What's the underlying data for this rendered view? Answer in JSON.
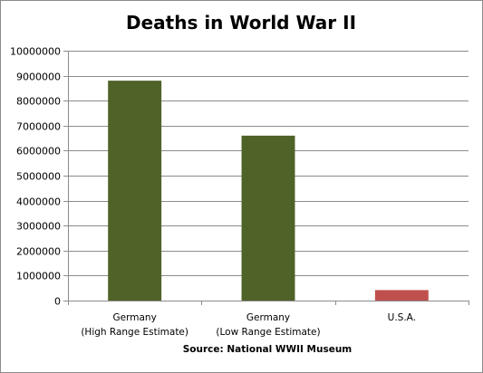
{
  "chart_data": {
    "type": "bar",
    "title": "Deaths in World War II",
    "source_note": "Source: National WWII Museum",
    "categories": [
      [
        "Germany",
        "(High Range Estimate)"
      ],
      [
        "Germany",
        "(Low Range Estimate)"
      ],
      [
        "U.S.A."
      ]
    ],
    "values": [
      8800000,
      6600000,
      420000
    ],
    "bar_colors": [
      "#4f6228",
      "#4f6228",
      "#c0504d"
    ],
    "ylim": [
      0,
      10000000
    ],
    "yticks": [
      "0",
      "1000000",
      "2000000",
      "3000000",
      "4000000",
      "5000000",
      "6000000",
      "7000000",
      "8000000",
      "9000000",
      "10000000"
    ],
    "grid": true,
    "legend": "none"
  }
}
